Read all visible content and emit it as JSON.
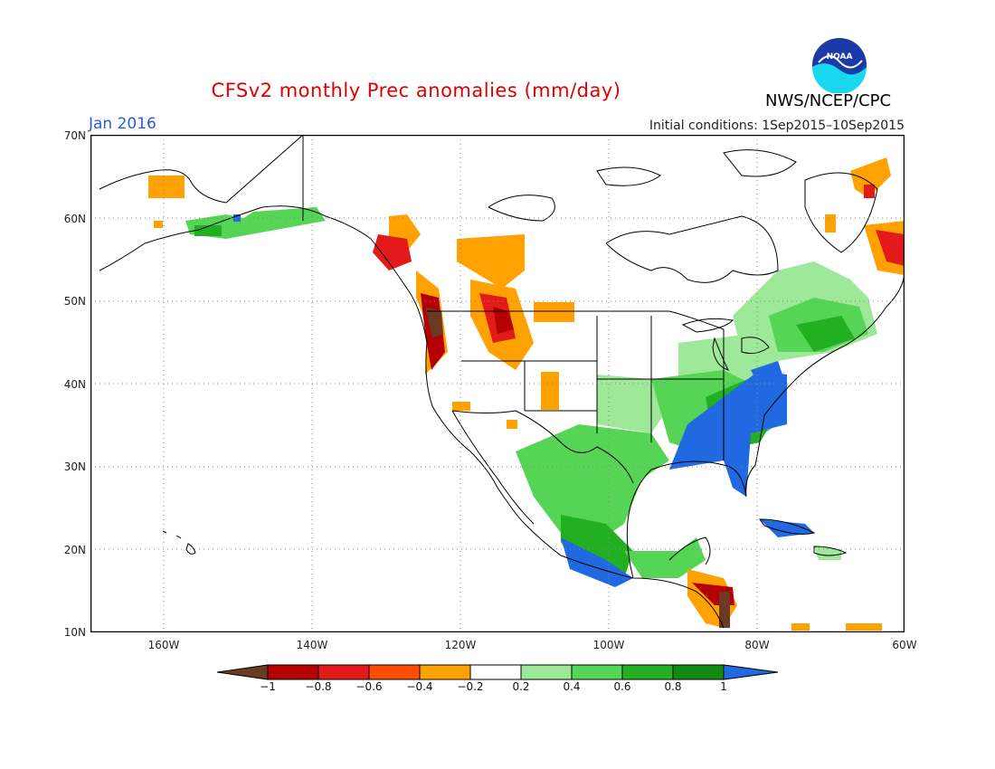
{
  "header": {
    "title": "CFSv2 monthly Prec anomalies (mm/day)",
    "month": "Jan 2016",
    "initial_conditions": "Initial conditions: 1Sep2015–10Sep2015",
    "agency": "NWS/NCEP/CPC",
    "logo_text": "NOAA"
  },
  "axes": {
    "lat_labels": [
      "70N",
      "60N",
      "50N",
      "40N",
      "30N",
      "20N",
      "10N"
    ],
    "lon_labels": [
      "160W",
      "140W",
      "120W",
      "100W",
      "80W",
      "60W"
    ]
  },
  "colorbar": {
    "labels": [
      "−1",
      "−0.8",
      "−0.6",
      "−0.4",
      "−0.2",
      "0.2",
      "0.4",
      "0.6",
      "0.8",
      "1"
    ],
    "colors": [
      "#6b3a25",
      "#b40000",
      "#e31a1c",
      "#ff4d00",
      "#ffa100",
      "#ffffff",
      "#9ee89a",
      "#55d455",
      "#22b022",
      "#118a11",
      "#2069e0"
    ]
  },
  "palette": {
    "land_lines": "#000000",
    "grid": "#888888"
  }
}
